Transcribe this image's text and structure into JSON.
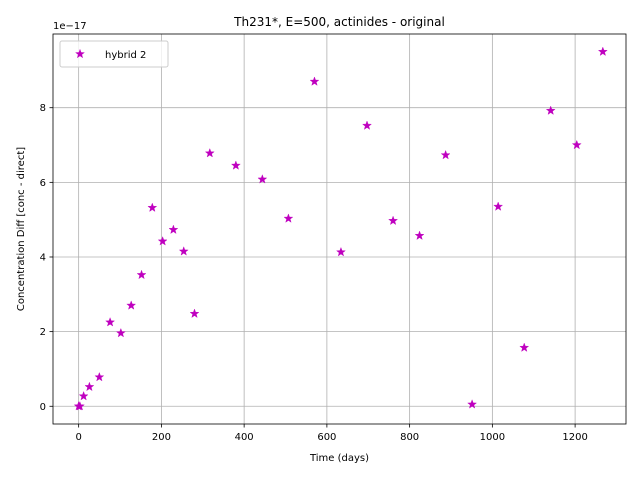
{
  "chart_data": {
    "type": "scatter",
    "title": "Th231*, E=500, actinides - original",
    "xlabel": "Time (days)",
    "ylabel": "Concentration Diff [conc - direct]",
    "y_offset_label": "1e−17",
    "xlim": [
      -62,
      1323
    ],
    "ylim": [
      -0.475,
      9.975
    ],
    "x_ticks": [
      0,
      200,
      400,
      600,
      800,
      1000,
      1200
    ],
    "x_tick_labels": [
      "0",
      "200",
      "400",
      "600",
      "800",
      "1000",
      "1200"
    ],
    "y_ticks": [
      0,
      2,
      4,
      6,
      8
    ],
    "y_tick_labels": [
      "0",
      "2",
      "4",
      "6",
      "8"
    ],
    "grid": true,
    "legend_position": "upper-left",
    "series": [
      {
        "name": "hybrid 2",
        "marker": "star",
        "color": "#bf00bf",
        "x": [
          0,
          3,
          12,
          26,
          50,
          76,
          102,
          127,
          152,
          178,
          203,
          229,
          254,
          280,
          317,
          380,
          444,
          507,
          570,
          634,
          697,
          760,
          824,
          887,
          951,
          1014,
          1077,
          1141,
          1204,
          1267
        ],
        "y": [
          0,
          0,
          0.27,
          0.52,
          0.78,
          2.25,
          1.96,
          2.7,
          3.52,
          5.32,
          4.42,
          4.73,
          4.15,
          2.48,
          6.78,
          6.45,
          6.08,
          5.03,
          8.7,
          4.13,
          7.52,
          4.97,
          4.57,
          6.73,
          0.05,
          5.35,
          1.57,
          7.92,
          7.0,
          9.5
        ]
      }
    ]
  }
}
